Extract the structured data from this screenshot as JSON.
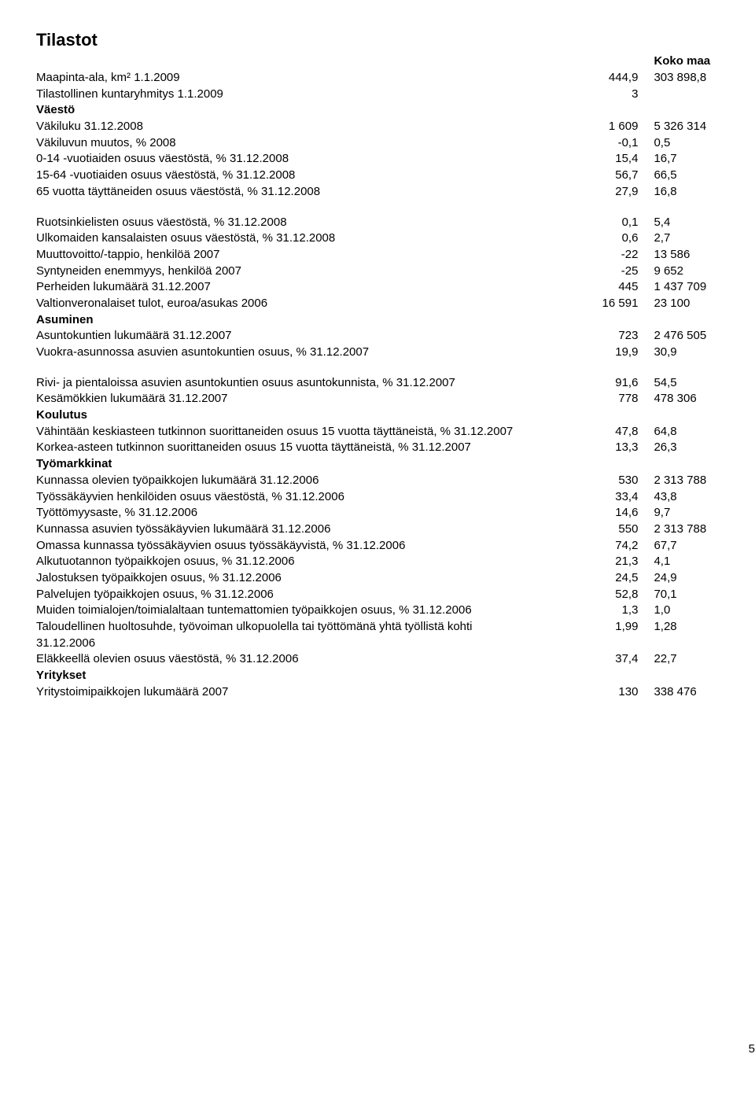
{
  "title": "Tilastot",
  "header": {
    "col2": "Koko maa"
  },
  "group1": [
    {
      "label": "Maapinta-ala, km² 1.1.2009",
      "v1": "444,9",
      "v2": "303 898,8"
    },
    {
      "label": "Tilastollinen kuntaryhmitys 1.1.2009",
      "v1": "3",
      "v2": ""
    },
    {
      "label": "Väestö",
      "section": true
    },
    {
      "label": "Väkiluku 31.12.2008",
      "v1": "1 609",
      "v2": "5 326 314"
    },
    {
      "label": "Väkiluvun muutos, % 2008",
      "v1": "-0,1",
      "v2": "0,5"
    },
    {
      "label": "0-14 -vuotiaiden osuus väestöstä, % 31.12.2008",
      "v1": "15,4",
      "v2": "16,7"
    },
    {
      "label": "15-64 -vuotiaiden osuus väestöstä, % 31.12.2008",
      "v1": "56,7",
      "v2": "66,5"
    },
    {
      "label": "65 vuotta täyttäneiden osuus väestöstä, % 31.12.2008",
      "v1": "27,9",
      "v2": "16,8"
    }
  ],
  "group2": [
    {
      "label": "Ruotsinkielisten osuus väestöstä, % 31.12.2008",
      "v1": "0,1",
      "v2": "5,4"
    },
    {
      "label": "Ulkomaiden kansalaisten osuus väestöstä, % 31.12.2008",
      "v1": "0,6",
      "v2": "2,7"
    },
    {
      "label": "Muuttovoitto/-tappio, henkilöä 2007",
      "v1": "-22",
      "v2": "13 586"
    },
    {
      "label": "Syntyneiden enemmyys, henkilöä 2007",
      "v1": "-25",
      "v2": "9 652"
    },
    {
      "label": "Perheiden lukumäärä 31.12.2007",
      "v1": "445",
      "v2": "1 437 709"
    },
    {
      "label": "Valtionveronalaiset tulot, euroa/asukas 2006",
      "v1": "16 591",
      "v2": "23 100"
    },
    {
      "label": "Asuminen",
      "section": true
    },
    {
      "label": "Asuntokuntien lukumäärä 31.12.2007",
      "v1": "723",
      "v2": "2 476 505"
    },
    {
      "label": "Vuokra-asunnossa asuvien asuntokuntien osuus, % 31.12.2007",
      "v1": "19,9",
      "v2": "30,9"
    }
  ],
  "group3": [
    {
      "label": "Rivi- ja pientaloissa asuvien asuntokuntien osuus asuntokunnista, % 31.12.2007",
      "v1": "91,6",
      "v2": "54,5"
    },
    {
      "label": "Kesämökkien lukumäärä 31.12.2007",
      "v1": "778",
      "v2": "478 306"
    },
    {
      "label": "Koulutus",
      "section": true
    },
    {
      "label": "Vähintään keskiasteen tutkinnon suorittaneiden osuus 15 vuotta täyttäneistä, % 31.12.2007",
      "v1": "47,8",
      "v2": "64,8"
    },
    {
      "label": "Korkea-asteen tutkinnon suorittaneiden osuus 15 vuotta täyttäneistä, % 31.12.2007",
      "v1": "13,3",
      "v2": "26,3"
    },
    {
      "label": "Työmarkkinat",
      "section": true
    },
    {
      "label": "Kunnassa olevien työpaikkojen lukumäärä 31.12.2006",
      "v1": "530",
      "v2": "2 313 788"
    },
    {
      "label": "Työssäkäyvien henkilöiden osuus väestöstä, % 31.12.2006",
      "v1": "33,4",
      "v2": "43,8"
    },
    {
      "label": "Työttömyysaste, % 31.12.2006",
      "v1": "14,6",
      "v2": "9,7"
    },
    {
      "label": "Kunnassa asuvien työssäkäyvien lukumäärä 31.12.2006",
      "v1": "550",
      "v2": "2 313 788"
    },
    {
      "label": "Omassa kunnassa työssäkäyvien osuus työssäkäyvistä, % 31.12.2006",
      "v1": "74,2",
      "v2": "67,7"
    },
    {
      "label": "Alkutuotannon työpaikkojen osuus, % 31.12.2006",
      "v1": "21,3",
      "v2": "4,1"
    },
    {
      "label": "Jalostuksen työpaikkojen osuus, % 31.12.2006",
      "v1": "24,5",
      "v2": "24,9"
    },
    {
      "label": "Palvelujen työpaikkojen osuus, % 31.12.2006",
      "v1": "52,8",
      "v2": "70,1"
    },
    {
      "label": "Muiden toimialojen/toimialaltaan tuntemattomien työpaikkojen osuus, % 31.12.2006",
      "v1": "1,3",
      "v2": "1,0"
    },
    {
      "label": "Taloudellinen huoltosuhde, työvoiman ulkopuolella tai työttömänä yhtä työllistä kohti 31.12.2006",
      "v1": "1,99",
      "v2": "1,28"
    },
    {
      "label": "Eläkkeellä olevien osuus väestöstä, % 31.12.2006",
      "v1": "37,4",
      "v2": "22,7"
    },
    {
      "label": "Yritykset",
      "section": true
    },
    {
      "label": "Yritystoimipaikkojen lukumäärä 2007",
      "v1": "130",
      "v2": "338 476"
    }
  ],
  "pagenum": "5"
}
